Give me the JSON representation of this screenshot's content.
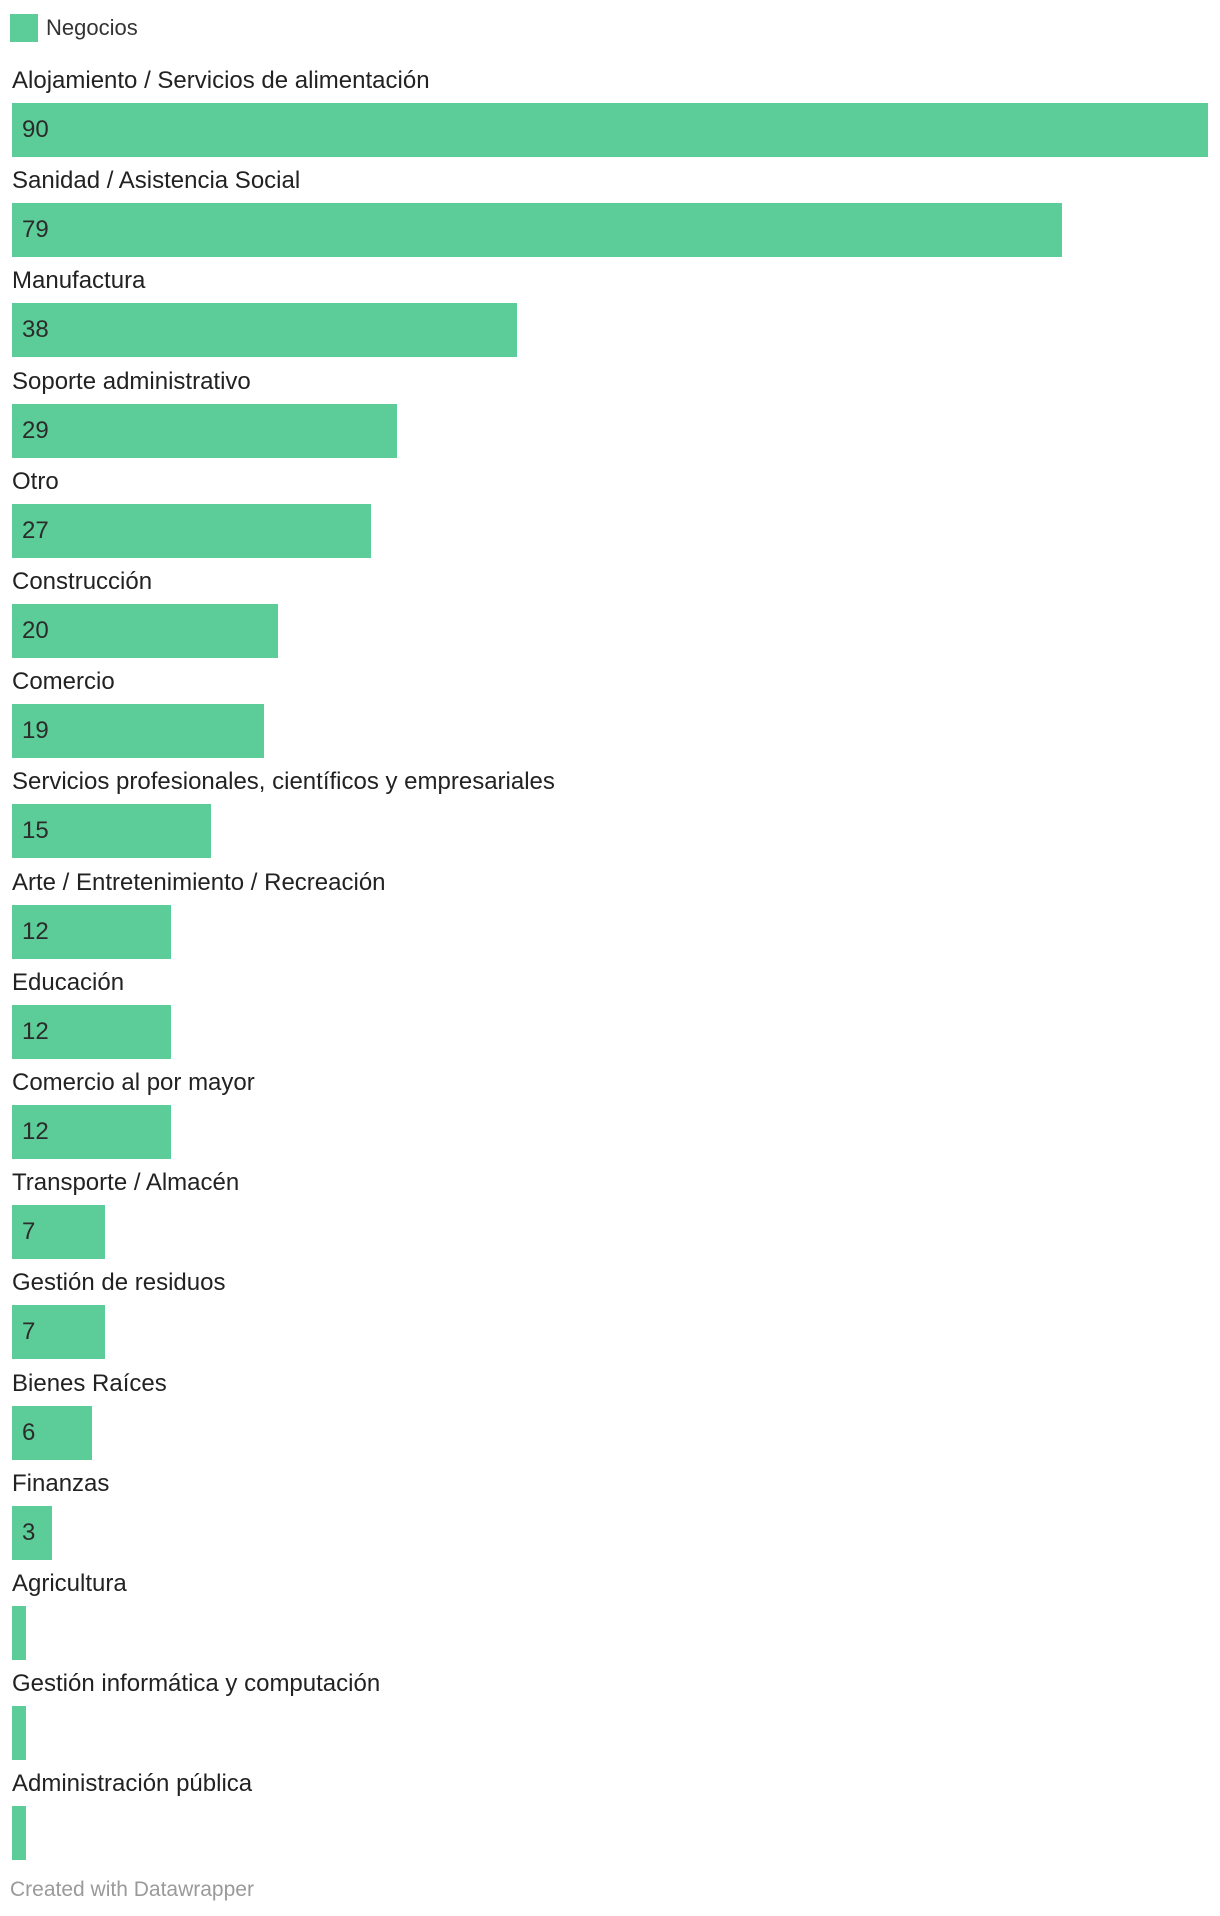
{
  "chart_data": {
    "type": "bar",
    "orientation": "horizontal",
    "legend_position": "top-left",
    "series": [
      {
        "name": "Negocios",
        "color": "#5ccd98"
      }
    ],
    "categories": [
      "Alojamiento / Servicios de alimentación",
      "Sanidad / Asistencia Social",
      "Manufactura",
      "Soporte administrativo",
      "Otro",
      "Construcción",
      "Comercio",
      "Servicios profesionales, científicos y empresariales",
      "Arte / Entretenimiento / Recreación",
      "Educación",
      "Comercio al por mayor",
      "Transporte / Almacén",
      "Gestión de residuos",
      "Bienes Raíces",
      "Finanzas",
      "Agricultura",
      "Gestión informática y computación",
      "Administración pública"
    ],
    "values": [
      90,
      79,
      38,
      29,
      27,
      20,
      19,
      15,
      12,
      12,
      12,
      7,
      7,
      6,
      3,
      1,
      1,
      1
    ],
    "value_labels": [
      "90",
      "79",
      "38",
      "29",
      "27",
      "20",
      "19",
      "15",
      "12",
      "12",
      "12",
      "7",
      "7",
      "6",
      "3",
      "",
      "",
      ""
    ],
    "xlim": [
      0,
      90
    ],
    "grid": false
  },
  "footer": {
    "credit": "Created with Datawrapper"
  }
}
